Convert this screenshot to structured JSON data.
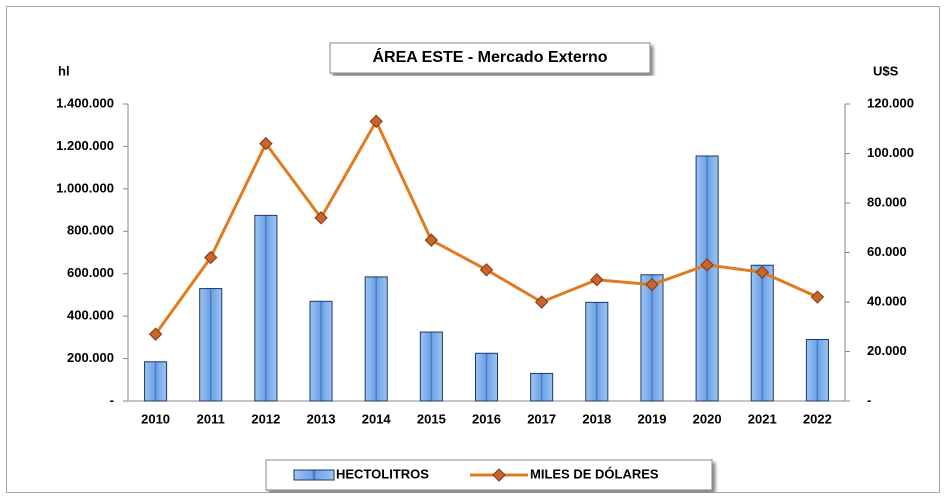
{
  "chart_data": {
    "type": "bar-line",
    "title": "ÁREA ESTE -  Mercado Externo",
    "y_label": "hl",
    "y2_label": "U$S",
    "categories": [
      "2010",
      "2011",
      "2012",
      "2013",
      "2014",
      "2015",
      "2016",
      "2017",
      "2018",
      "2019",
      "2020",
      "2021",
      "2022"
    ],
    "series": [
      {
        "name": "HECTOLITROS",
        "type": "bar",
        "axis": "y",
        "color": "#7fb2ee",
        "values": [
          185000,
          530000,
          875000,
          470000,
          585000,
          325000,
          225000,
          130000,
          465000,
          595000,
          1155000,
          640000,
          290000
        ]
      },
      {
        "name": "MILES DE DÓLARES",
        "type": "line",
        "axis": "y2",
        "color": "#e07b20",
        "marker_color": "#c8642c",
        "values": [
          27000,
          58000,
          104000,
          74000,
          113000,
          65000,
          53000,
          40000,
          49000,
          47000,
          55000,
          52000,
          42000
        ]
      }
    ],
    "ylim": [
      0,
      1400000
    ],
    "yticks": [
      {
        "value": 0,
        "label": "-"
      },
      {
        "value": 200000,
        "label": "200.000"
      },
      {
        "value": 400000,
        "label": "400.000"
      },
      {
        "value": 600000,
        "label": "600.000"
      },
      {
        "value": 800000,
        "label": "800.000"
      },
      {
        "value": 1000000,
        "label": "1.000.000"
      },
      {
        "value": 1200000,
        "label": "1.200.000"
      },
      {
        "value": 1400000,
        "label": "1.400.000"
      }
    ],
    "y2lim": [
      0,
      120000
    ],
    "y2ticks": [
      {
        "value": 0,
        "label": "-"
      },
      {
        "value": 20000,
        "label": "20.000"
      },
      {
        "value": 40000,
        "label": "40.000"
      },
      {
        "value": 60000,
        "label": "60.000"
      },
      {
        "value": 80000,
        "label": "80.000"
      },
      {
        "value": 100000,
        "label": "100.000"
      },
      {
        "value": 120000,
        "label": "120.000"
      }
    ]
  }
}
